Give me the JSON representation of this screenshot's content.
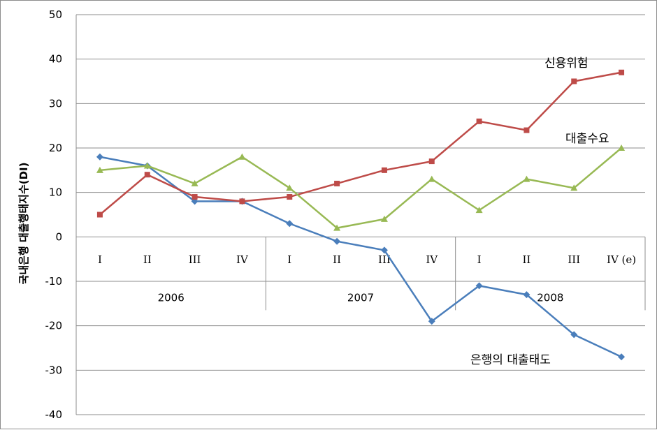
{
  "chart_data": {
    "type": "line",
    "ylabel": "국내은행 대출행태지수(DI)",
    "ylim": [
      -40,
      50
    ],
    "yticks": [
      50,
      40,
      30,
      20,
      10,
      0,
      -10,
      -20,
      -30,
      -40
    ],
    "grid": true,
    "categories": [
      "I",
      "II",
      "III",
      "IV",
      "I",
      "II",
      "III",
      "IV",
      "I",
      "II",
      "III",
      "IV (e)"
    ],
    "groups": [
      {
        "label": "2006",
        "count": 4
      },
      {
        "label": "2007",
        "count": 4
      },
      {
        "label": "2008",
        "count": 4
      }
    ],
    "series": [
      {
        "name": "은행의 대출태도",
        "color": "#4a7ebb",
        "marker": "diamond",
        "values": [
          18,
          16,
          8,
          8,
          3,
          -1,
          -3,
          -19,
          -11,
          -13,
          -22,
          -27
        ]
      },
      {
        "name": "신용위험",
        "color": "#be4b48",
        "marker": "square",
        "values": [
          5,
          14,
          9,
          8,
          9,
          12,
          15,
          17,
          26,
          24,
          35,
          37
        ]
      },
      {
        "name": "대출수요",
        "color": "#98b954",
        "marker": "triangle",
        "values": [
          15,
          16,
          12,
          18,
          11,
          2,
          4,
          13,
          6,
          13,
          11,
          20
        ]
      }
    ]
  }
}
